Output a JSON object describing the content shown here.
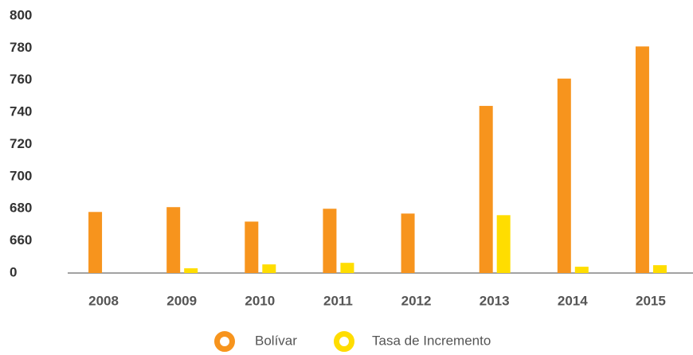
{
  "chart_data": {
    "type": "bar",
    "categories": [
      "2008",
      "2009",
      "2010",
      "2011",
      "2012",
      "2013",
      "2014",
      "2015"
    ],
    "series": [
      {
        "name": "Bolívar",
        "color": "#f7941d",
        "values": [
          678,
          681,
          672,
          680,
          677,
          744,
          761,
          781
        ]
      },
      {
        "name": "Tasa de Incremento",
        "color": "#ffdd00",
        "values": [
          0,
          97,
          177,
          209,
          0,
          676,
          129,
          161
        ]
      }
    ],
    "ylim": [
      0,
      800
    ],
    "yticks": [
      0,
      660,
      680,
      700,
      720,
      740,
      760,
      780,
      800
    ],
    "grid": false,
    "legend": "bottom"
  }
}
